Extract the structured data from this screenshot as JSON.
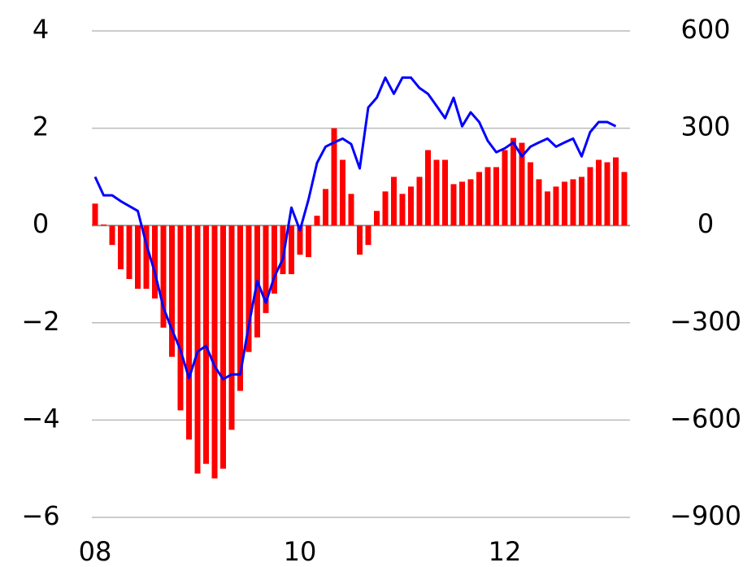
{
  "chart_data": {
    "type": "bar-line",
    "categories": [
      "08",
      null,
      null,
      null,
      null,
      null,
      null,
      null,
      null,
      null,
      null,
      null,
      null,
      null,
      null,
      null,
      null,
      null,
      null,
      null,
      null,
      null,
      null,
      null,
      "10",
      null,
      null,
      null,
      null,
      null,
      null,
      null,
      null,
      null,
      null,
      null,
      null,
      null,
      null,
      null,
      null,
      null,
      null,
      null,
      null,
      null,
      null,
      null,
      "12",
      null,
      null,
      null,
      null,
      null,
      null,
      null,
      null,
      null,
      null,
      null,
      null,
      null,
      null
    ],
    "series": [
      {
        "type": "bar",
        "color": "#ff0000",
        "axis": "y",
        "values": [
          0.45,
          0.02,
          -0.4,
          -0.9,
          -1.1,
          -1.3,
          -1.3,
          -1.5,
          -2.1,
          -2.7,
          -3.8,
          -4.4,
          -5.1,
          -4.9,
          -5.2,
          -5.0,
          -4.2,
          -3.4,
          -2.6,
          -2.3,
          -1.8,
          -1.4,
          -1.0,
          -1.0,
          -0.6,
          -0.65,
          0.2,
          0.75,
          2.0,
          1.35,
          0.65,
          -0.6,
          -0.4,
          0.3,
          0.7,
          1.0,
          0.65,
          0.8,
          1.0,
          1.55,
          1.35,
          1.35,
          0.85,
          0.9,
          0.95,
          1.1,
          1.2,
          1.2,
          1.55,
          1.8,
          1.7,
          1.3,
          0.95,
          0.7,
          0.8,
          0.9,
          0.95,
          1.0,
          1.2,
          1.35,
          1.3,
          1.4,
          1.1
        ]
      },
      {
        "type": "line",
        "color": "#0000ff",
        "axis": "y2",
        "values": [
          150,
          93,
          93,
          75,
          60,
          45,
          -58,
          -145,
          -253,
          -321,
          -384,
          -471,
          -389,
          -371,
          -434,
          -474,
          -459,
          -459,
          -308,
          -171,
          -238,
          -158,
          -103,
          55,
          -15,
          80,
          193,
          243,
          256,
          268,
          251,
          176,
          364,
          394,
          456,
          406,
          456,
          456,
          424,
          406,
          369,
          331,
          394,
          306,
          349,
          319,
          261,
          226,
          238,
          256,
          213,
          243,
          256,
          268,
          243,
          256,
          268,
          213,
          288,
          319,
          319,
          306,
          null
        ]
      }
    ],
    "ylim": [
      -6,
      4
    ],
    "yticks": [
      {
        "value": -6,
        "label": "−6"
      },
      {
        "value": -4,
        "label": "−4"
      },
      {
        "value": -2,
        "label": "−2"
      },
      0,
      2,
      4
    ],
    "y2lim": [
      -900,
      600
    ],
    "y2ticks": [
      {
        "value": -900,
        "label": "−900"
      },
      {
        "value": -600,
        "label": "−600"
      },
      {
        "value": -300,
        "label": "−300"
      },
      0,
      300,
      600
    ],
    "grid": true
  }
}
